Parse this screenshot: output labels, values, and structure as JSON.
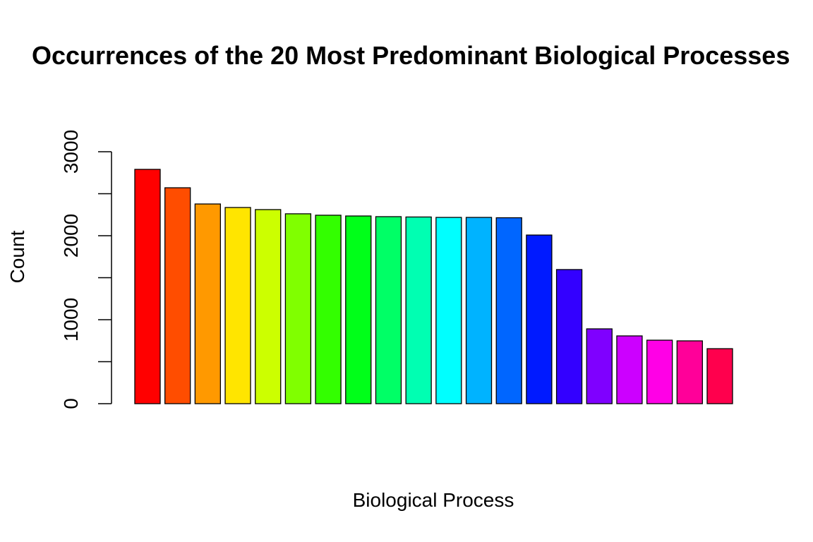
{
  "chart_data": {
    "type": "bar",
    "title": "Occurrences of the 20 Most Predominant Biological Processes",
    "xlabel": "Biological Process",
    "ylabel": "Count",
    "ylim": [
      0,
      3000
    ],
    "yticks": [
      0,
      500,
      1000,
      1500,
      2000,
      2500,
      3000
    ],
    "ytick_labels": [
      "0",
      "1000",
      "2000",
      "3000"
    ],
    "ytick_label_values": [
      0,
      1000,
      2000,
      3000
    ],
    "grid": false,
    "values": [
      2790,
      2571,
      2378,
      2336,
      2311,
      2261,
      2244,
      2235,
      2227,
      2223,
      2218,
      2218,
      2214,
      2008,
      1597,
      891,
      807,
      756,
      748,
      655
    ],
    "colors": [
      "#FF0000",
      "#FF4D00",
      "#FF9900",
      "#FFE500",
      "#CCFF00",
      "#80FF00",
      "#33FF00",
      "#00FF19",
      "#00FF66",
      "#00FFB2",
      "#00FFFF",
      "#00B3FF",
      "#0066FF",
      "#001AFF",
      "#3300FF",
      "#7F00FF",
      "#CC00FF",
      "#FF00E6",
      "#FF0099",
      "#FF004D"
    ]
  }
}
